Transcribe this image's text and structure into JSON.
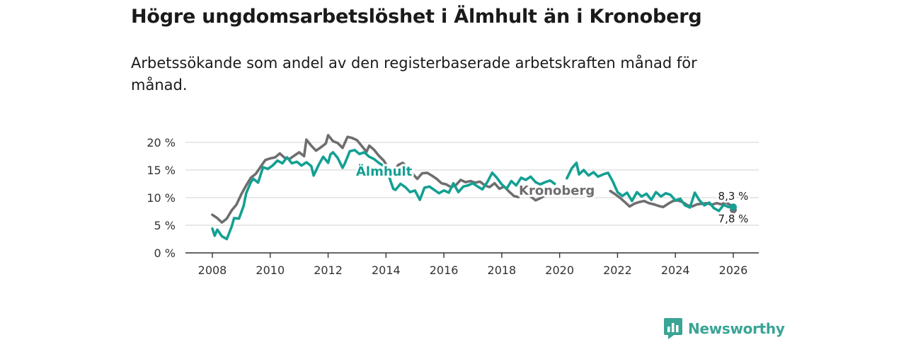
{
  "title": "Högre ungdomsarbetslöshet i Älmhult än i Kronoberg",
  "subtitle": "Arbetssökande som andel av den registerbaserade arbetskraften månad för månad.",
  "brand": {
    "name": "Newsworthy",
    "icon": "bar-chart-speech-icon"
  },
  "colors": {
    "almhult": "#13a093",
    "kronoberg": "#6e6d6f",
    "grid": "#d9d9d9",
    "axis": "#333333"
  },
  "chart_data": {
    "type": "line",
    "title": "Högre ungdomsarbetslöshet i Älmhult än i Kronoberg",
    "xlabel": "",
    "ylabel": "",
    "xlim": [
      2007.3,
      2026.9
    ],
    "ylim": [
      0,
      20
    ],
    "y_ticks": [
      0,
      5,
      10,
      15,
      20
    ],
    "y_tick_labels": [
      "0 %",
      "5 %",
      "10 %",
      "15 %",
      "20 %"
    ],
    "x_ticks": [
      2008,
      2010,
      2012,
      2014,
      2016,
      2018,
      2020,
      2022,
      2024,
      2026
    ],
    "x_tick_labels": [
      "2008",
      "2010",
      "2012",
      "2014",
      "2016",
      "2018",
      "2020",
      "2022",
      "2024",
      "2026"
    ],
    "grid": true,
    "series": [
      {
        "name": "Kronoberg",
        "label": "Kronoberg",
        "color": "#6e6d6f",
        "end_label": "7,8 %",
        "points": [
          [
            2008.0,
            6.9
          ],
          [
            2008.17,
            6.3
          ],
          [
            2008.33,
            5.5
          ],
          [
            2008.5,
            6.2
          ],
          [
            2008.67,
            7.7
          ],
          [
            2008.83,
            8.7
          ],
          [
            2009.0,
            10.6
          ],
          [
            2009.17,
            12.2
          ],
          [
            2009.33,
            13.6
          ],
          [
            2009.5,
            14.3
          ],
          [
            2009.67,
            15.6
          ],
          [
            2009.83,
            16.8
          ],
          [
            2010.0,
            17.1
          ],
          [
            2010.17,
            17.3
          ],
          [
            2010.33,
            18.0
          ],
          [
            2010.5,
            17.2
          ],
          [
            2010.67,
            17.0
          ],
          [
            2010.83,
            17.6
          ],
          [
            2011.0,
            18.2
          ],
          [
            2011.17,
            17.5
          ],
          [
            2011.25,
            20.5
          ],
          [
            2011.42,
            19.4
          ],
          [
            2011.58,
            18.5
          ],
          [
            2011.75,
            19.1
          ],
          [
            2011.92,
            19.8
          ],
          [
            2012.0,
            21.3
          ],
          [
            2012.17,
            20.2
          ],
          [
            2012.33,
            19.9
          ],
          [
            2012.5,
            19.0
          ],
          [
            2012.67,
            21.0
          ],
          [
            2012.83,
            20.8
          ],
          [
            2013.0,
            20.4
          ],
          [
            2013.17,
            19.3
          ],
          [
            2013.33,
            18.3
          ],
          [
            2013.42,
            19.4
          ],
          [
            2013.58,
            18.7
          ],
          [
            2013.75,
            17.6
          ],
          [
            2013.92,
            16.7
          ],
          [
            2014.08,
            15.4
          ],
          [
            2014.25,
            14.4
          ],
          [
            2014.42,
            15.9
          ],
          [
            2014.58,
            16.3
          ],
          [
            2014.75,
            15.4
          ],
          [
            2014.92,
            14.3
          ],
          [
            2015.08,
            13.4
          ],
          [
            2015.25,
            14.4
          ],
          [
            2015.42,
            14.5
          ],
          [
            2015.58,
            14.0
          ],
          [
            2015.75,
            13.4
          ],
          [
            2015.92,
            12.6
          ],
          [
            2016.08,
            12.4
          ],
          [
            2016.25,
            11.9
          ],
          [
            2016.42,
            12.3
          ],
          [
            2016.58,
            13.2
          ],
          [
            2016.75,
            12.8
          ],
          [
            2016.92,
            13.0
          ],
          [
            2017.08,
            12.7
          ],
          [
            2017.25,
            12.9
          ],
          [
            2017.42,
            12.2
          ],
          [
            2017.58,
            11.9
          ],
          [
            2017.75,
            12.6
          ],
          [
            2017.92,
            11.6
          ],
          [
            2018.08,
            12.0
          ],
          [
            2018.25,
            11.1
          ],
          [
            2018.42,
            10.3
          ],
          [
            2018.58,
            10.1
          ]
        ],
        "points_after_gap": [
          [
            2019.0,
            10.2
          ],
          [
            2019.17,
            9.5
          ],
          [
            2019.33,
            9.9
          ],
          [
            2019.5,
            10.4
          ]
        ],
        "points_tail": [
          [
            2021.75,
            11.2
          ],
          [
            2021.92,
            10.6
          ],
          [
            2022.08,
            10.0
          ],
          [
            2022.25,
            9.2
          ],
          [
            2022.42,
            8.4
          ],
          [
            2022.58,
            8.9
          ],
          [
            2022.75,
            9.2
          ],
          [
            2022.92,
            9.4
          ],
          [
            2023.08,
            9.0
          ],
          [
            2023.25,
            8.8
          ],
          [
            2023.42,
            8.5
          ],
          [
            2023.58,
            8.3
          ],
          [
            2023.75,
            8.9
          ],
          [
            2023.92,
            9.4
          ],
          [
            2024.08,
            9.5
          ],
          [
            2024.25,
            9.2
          ],
          [
            2024.42,
            8.6
          ],
          [
            2024.58,
            8.4
          ],
          [
            2024.75,
            8.8
          ],
          [
            2024.92,
            8.9
          ],
          [
            2025.08,
            9.0
          ],
          [
            2025.25,
            8.7
          ],
          [
            2025.42,
            9.0
          ],
          [
            2025.58,
            8.8
          ],
          [
            2025.75,
            9.1
          ],
          [
            2025.92,
            8.6
          ],
          [
            2026.0,
            7.8
          ]
        ]
      },
      {
        "name": "Älmhult",
        "label": "Älmhult",
        "color": "#13a093",
        "end_label": "8,3 %",
        "points": [
          [
            2008.0,
            4.4
          ],
          [
            2008.08,
            3.1
          ],
          [
            2008.17,
            4.2
          ],
          [
            2008.33,
            3.0
          ],
          [
            2008.5,
            2.5
          ],
          [
            2008.67,
            4.8
          ],
          [
            2008.75,
            6.3
          ],
          [
            2008.92,
            6.2
          ],
          [
            2009.08,
            8.5
          ],
          [
            2009.17,
            10.8
          ],
          [
            2009.33,
            12.8
          ],
          [
            2009.42,
            13.4
          ],
          [
            2009.58,
            12.7
          ],
          [
            2009.75,
            15.5
          ],
          [
            2009.92,
            15.2
          ],
          [
            2010.08,
            15.8
          ],
          [
            2010.25,
            16.7
          ],
          [
            2010.42,
            16.2
          ],
          [
            2010.58,
            17.3
          ],
          [
            2010.75,
            16.2
          ],
          [
            2010.92,
            16.5
          ],
          [
            2011.08,
            15.8
          ],
          [
            2011.25,
            16.4
          ],
          [
            2011.42,
            15.7
          ],
          [
            2011.5,
            14.0
          ],
          [
            2011.67,
            15.9
          ],
          [
            2011.83,
            17.4
          ],
          [
            2012.0,
            16.3
          ],
          [
            2012.08,
            17.8
          ],
          [
            2012.17,
            18.2
          ],
          [
            2012.33,
            17.2
          ],
          [
            2012.5,
            15.4
          ],
          [
            2012.58,
            16.2
          ],
          [
            2012.75,
            18.4
          ],
          [
            2012.92,
            18.6
          ],
          [
            2013.08,
            17.9
          ],
          [
            2013.25,
            18.2
          ],
          [
            2013.42,
            17.4
          ],
          [
            2013.58,
            17.0
          ],
          [
            2013.75,
            16.3
          ],
          [
            2013.92,
            15.7
          ],
          [
            2014.08,
            14.2
          ],
          [
            2014.25,
            11.6
          ],
          [
            2014.33,
            11.4
          ],
          [
            2014.5,
            12.5
          ],
          [
            2014.67,
            11.9
          ],
          [
            2014.83,
            11.0
          ],
          [
            2015.0,
            11.3
          ],
          [
            2015.17,
            9.6
          ],
          [
            2015.33,
            11.8
          ],
          [
            2015.5,
            12.0
          ],
          [
            2015.67,
            11.4
          ],
          [
            2015.83,
            10.8
          ],
          [
            2016.0,
            11.3
          ],
          [
            2016.17,
            10.9
          ],
          [
            2016.33,
            12.6
          ],
          [
            2016.5,
            11.0
          ],
          [
            2016.67,
            12.0
          ],
          [
            2016.83,
            12.2
          ],
          [
            2017.0,
            12.6
          ],
          [
            2017.17,
            12.0
          ],
          [
            2017.33,
            11.5
          ],
          [
            2017.5,
            12.8
          ],
          [
            2017.67,
            14.5
          ],
          [
            2017.83,
            13.6
          ],
          [
            2018.0,
            12.4
          ],
          [
            2018.17,
            11.6
          ],
          [
            2018.33,
            13.0
          ],
          [
            2018.5,
            12.2
          ],
          [
            2018.67,
            13.6
          ],
          [
            2018.83,
            13.2
          ],
          [
            2019.0,
            13.8
          ],
          [
            2019.17,
            12.8
          ],
          [
            2019.33,
            12.4
          ],
          [
            2019.5,
            12.8
          ],
          [
            2019.67,
            13.1
          ],
          [
            2019.83,
            12.5
          ]
        ],
        "points_tail": [
          [
            2020.25,
            13.5
          ],
          [
            2020.42,
            15.3
          ],
          [
            2020.58,
            16.3
          ],
          [
            2020.67,
            14.2
          ],
          [
            2020.83,
            15.0
          ],
          [
            2021.0,
            14.0
          ],
          [
            2021.17,
            14.6
          ],
          [
            2021.33,
            13.8
          ],
          [
            2021.5,
            14.2
          ],
          [
            2021.67,
            14.5
          ],
          [
            2021.83,
            13.0
          ],
          [
            2022.0,
            11.0
          ],
          [
            2022.17,
            10.3
          ],
          [
            2022.33,
            10.9
          ],
          [
            2022.5,
            9.4
          ],
          [
            2022.67,
            11.0
          ],
          [
            2022.83,
            10.2
          ],
          [
            2023.0,
            10.7
          ],
          [
            2023.17,
            9.6
          ],
          [
            2023.33,
            11.0
          ],
          [
            2023.5,
            10.2
          ],
          [
            2023.67,
            10.8
          ],
          [
            2023.83,
            10.5
          ],
          [
            2024.0,
            9.5
          ],
          [
            2024.17,
            9.8
          ],
          [
            2024.33,
            8.6
          ],
          [
            2024.5,
            8.2
          ],
          [
            2024.67,
            10.9
          ],
          [
            2024.83,
            9.5
          ],
          [
            2025.0,
            8.6
          ],
          [
            2025.17,
            9.1
          ],
          [
            2025.33,
            8.1
          ],
          [
            2025.5,
            7.6
          ],
          [
            2025.67,
            8.7
          ],
          [
            2025.83,
            8.3
          ],
          [
            2026.0,
            8.3
          ]
        ]
      }
    ]
  }
}
